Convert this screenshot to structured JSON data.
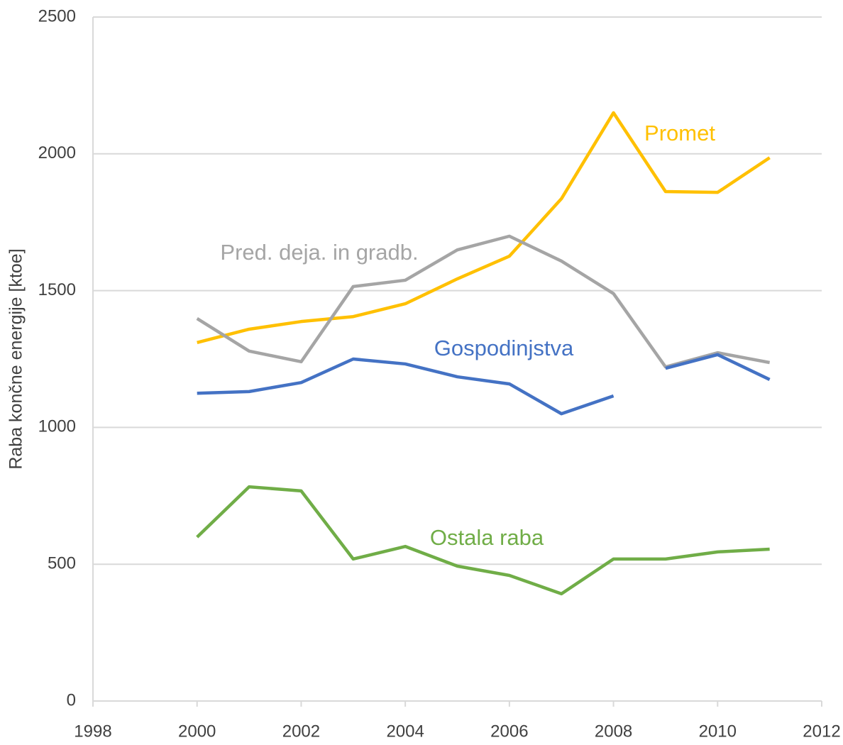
{
  "chart_data": {
    "type": "line",
    "y_label": "Raba končne energije [ktoe]",
    "x": [
      2000,
      2001,
      2002,
      2003,
      2004,
      2005,
      2006,
      2007,
      2008,
      2009,
      2010,
      2011
    ],
    "series": [
      {
        "name": "Promet",
        "color": "#FFC000",
        "values": [
          1310,
          1359,
          1387,
          1405,
          1452,
          1543,
          1626,
          1836,
          2150,
          1862,
          1859,
          1986
        ]
      },
      {
        "name": "Pred. deja. in gradb.",
        "color": "#A5A5A5",
        "values": [
          1398,
          1279,
          1240,
          1515,
          1538,
          1649,
          1699,
          1608,
          1489,
          1221,
          1273,
          1237
        ]
      },
      {
        "name": "Gospodinjstva",
        "color": "#4472C4",
        "x": [
          2000,
          2001,
          2002,
          2003,
          2004,
          2005,
          2006,
          2007,
          2008,
          null,
          2009,
          2010,
          2011
        ],
        "values": [
          1125,
          1131,
          1164,
          1250,
          1232,
          1185,
          1159,
          1050,
          1115,
          null,
          1216,
          1266,
          1175
        ]
      },
      {
        "name": "Ostala raba",
        "color": "#70AD47",
        "values": [
          599,
          783,
          768,
          519,
          565,
          493,
          459,
          392,
          519,
          519,
          545,
          555
        ]
      }
    ],
    "xlim": [
      1998,
      2012
    ],
    "xticks": [
      1998,
      2000,
      2002,
      2004,
      2006,
      2008,
      2010,
      2012
    ],
    "ylim": [
      0,
      2500
    ],
    "yticks": [
      0,
      500,
      1000,
      1500,
      2000,
      2500
    ],
    "grid": true
  }
}
